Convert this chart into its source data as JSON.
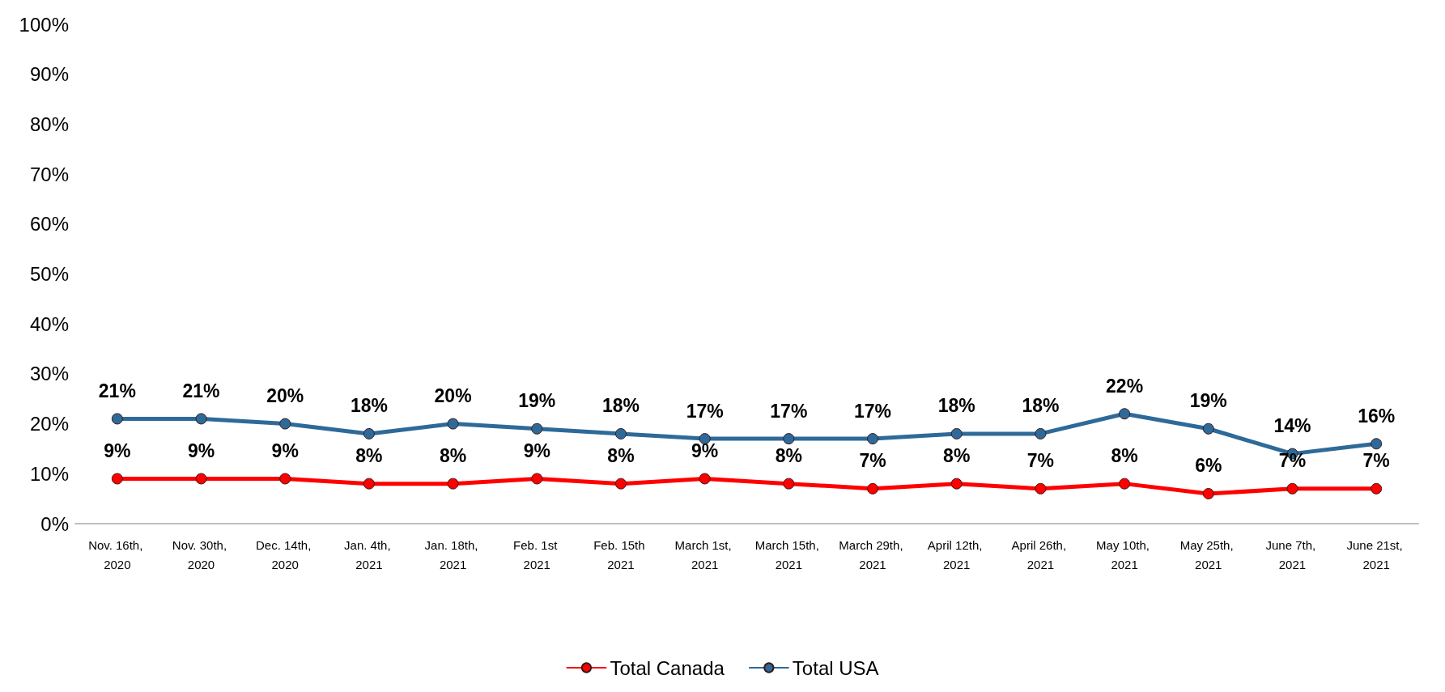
{
  "chart_data": {
    "type": "line",
    "categories": [
      "Nov. 16th, 2020",
      "Nov. 30th, 2020",
      "Dec. 14th, 2020",
      "Jan. 4th, 2021",
      "Jan. 18th, 2021",
      "Feb. 1st 2021",
      "Feb. 15th 2021",
      "March 1st, 2021",
      "March 15th, 2021",
      "March 29th, 2021",
      "April 12th, 2021",
      "April 26th, 2021",
      "May 10th, 2021",
      "May 25th, 2021",
      "June 7th, 2021",
      "June 21st, 2021"
    ],
    "series": [
      {
        "name": "Total Canada",
        "color": "#ff0000",
        "values": [
          9,
          9,
          9,
          8,
          8,
          9,
          8,
          9,
          8,
          7,
          8,
          7,
          8,
          6,
          7,
          7
        ],
        "value_labels": [
          "9%",
          "9%",
          "9%",
          "8%",
          "8%",
          "9%",
          "8%",
          "9%",
          "8%",
          "7%",
          "8%",
          "7%",
          "8%",
          "6%",
          "7%",
          "7%"
        ]
      },
      {
        "name": "Total USA",
        "color": "#2e6a99",
        "values": [
          21,
          21,
          20,
          18,
          20,
          19,
          18,
          17,
          17,
          17,
          18,
          18,
          22,
          19,
          14,
          16
        ],
        "value_labels": [
          "21%",
          "21%",
          "20%",
          "18%",
          "20%",
          "19%",
          "18%",
          "17%",
          "17%",
          "17%",
          "18%",
          "18%",
          "22%",
          "19%",
          "14%",
          "16%"
        ]
      }
    ],
    "ylim": [
      0,
      100
    ],
    "yticks": [
      {
        "value": 0,
        "label": "0%"
      },
      {
        "value": 10,
        "label": "10%"
      },
      {
        "value": 20,
        "label": "20%"
      },
      {
        "value": 30,
        "label": "30%"
      },
      {
        "value": 40,
        "label": "40%"
      },
      {
        "value": 50,
        "label": "50%"
      },
      {
        "value": 60,
        "label": "60%"
      },
      {
        "value": 70,
        "label": "70%"
      },
      {
        "value": 80,
        "label": "80%"
      },
      {
        "value": 90,
        "label": "90%"
      },
      {
        "value": 100,
        "label": "100%"
      }
    ],
    "grid": false,
    "legend": "bottom",
    "marker": "circle",
    "line_style": "solid"
  }
}
